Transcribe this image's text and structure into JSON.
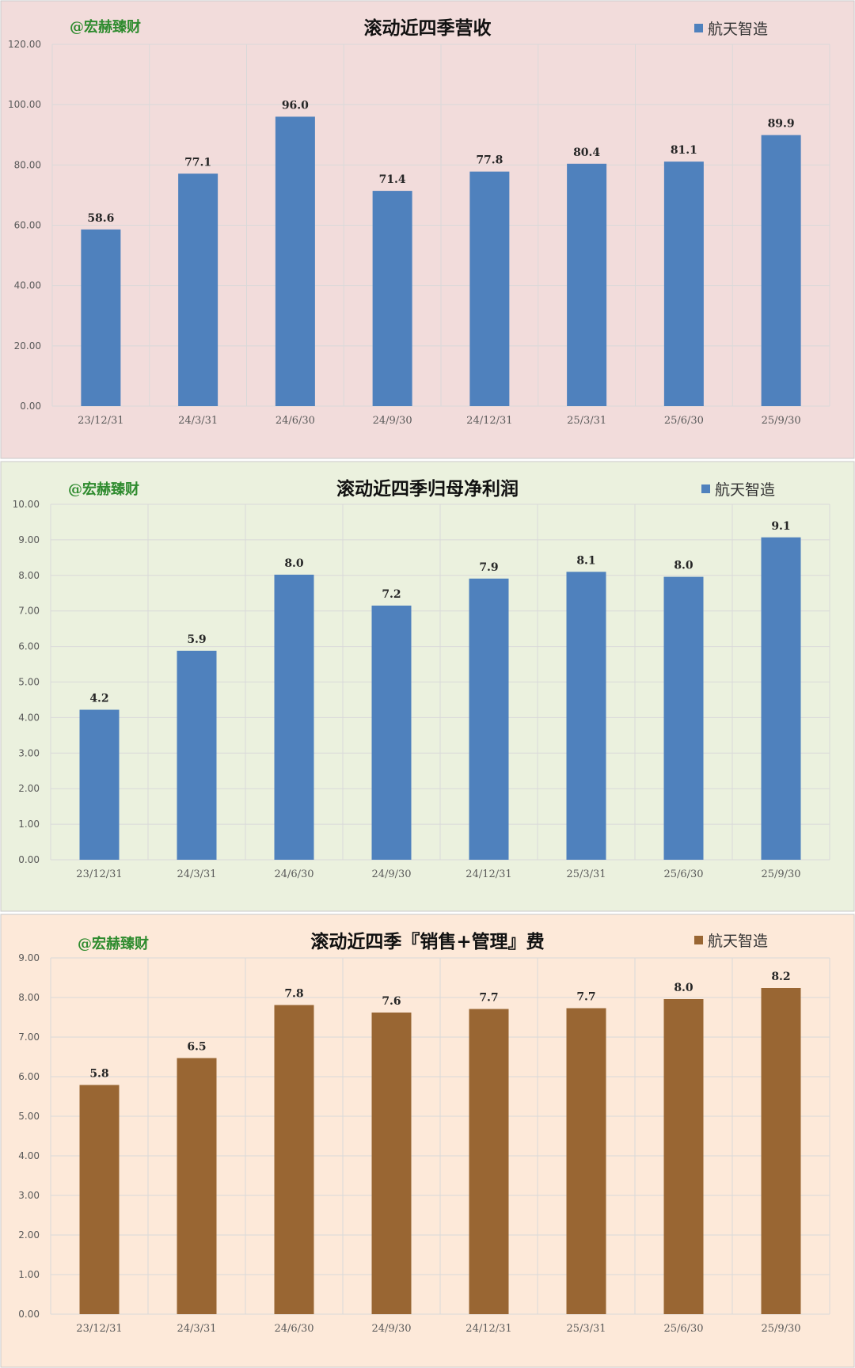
{
  "chart_data": [
    {
      "type": "bar",
      "title": "滚动近四季营收",
      "watermark": "@宏赫臻财",
      "legend": "top-right",
      "categories": [
        "23/12/31",
        "24/3/31",
        "24/6/30",
        "24/9/30",
        "24/12/31",
        "25/3/31",
        "25/6/30",
        "25/9/30"
      ],
      "series": [
        {
          "name": "航天智造",
          "values": [
            58.6,
            77.1,
            96.0,
            71.4,
            77.8,
            80.4,
            81.1,
            89.9
          ],
          "color": "#4f81bd"
        }
      ],
      "ylim": [
        0,
        120
      ],
      "yticks": [
        "0.00",
        "20.00",
        "40.00",
        "60.00",
        "80.00",
        "100.00",
        "120.00"
      ],
      "value_labels": [
        "58.6",
        "77.1",
        "96.0",
        "71.4",
        "77.8",
        "80.4",
        "81.1",
        "89.9"
      ],
      "grid": true,
      "background": "#f2dcdb"
    },
    {
      "type": "bar",
      "title": "滚动近四季归母净利润",
      "watermark": "@宏赫臻财",
      "legend": "top-right",
      "categories": [
        "23/12/31",
        "24/3/31",
        "24/6/30",
        "24/9/30",
        "24/12/31",
        "25/3/31",
        "25/6/30",
        "25/9/30"
      ],
      "series": [
        {
          "name": "航天智造",
          "values": [
            4.22,
            5.88,
            8.02,
            7.15,
            7.91,
            8.1,
            7.96,
            9.07
          ],
          "color": "#4f81bd"
        }
      ],
      "ylim": [
        0,
        10
      ],
      "yticks": [
        "0.00",
        "1.00",
        "2.00",
        "3.00",
        "4.00",
        "5.00",
        "6.00",
        "7.00",
        "8.00",
        "9.00",
        "10.00"
      ],
      "value_labels": [
        "4.2",
        "5.9",
        "8.0",
        "7.2",
        "7.9",
        "8.1",
        "8.0",
        "9.1"
      ],
      "grid": true,
      "background": "#ebf1de"
    },
    {
      "type": "bar",
      "title": "滚动近四季『销售+管理』费",
      "watermark": "@宏赫臻财",
      "legend": "top-right",
      "categories": [
        "23/12/31",
        "24/3/31",
        "24/6/30",
        "24/9/30",
        "24/12/31",
        "25/3/31",
        "25/6/30",
        "25/9/30"
      ],
      "series": [
        {
          "name": "航天智造",
          "values": [
            5.79,
            6.47,
            7.81,
            7.62,
            7.71,
            7.73,
            7.96,
            8.24
          ],
          "color": "#996633"
        }
      ],
      "ylim": [
        0,
        9
      ],
      "yticks": [
        "0.00",
        "1.00",
        "2.00",
        "3.00",
        "4.00",
        "5.00",
        "6.00",
        "7.00",
        "8.00",
        "9.00"
      ],
      "value_labels": [
        "5.8",
        "6.5",
        "7.8",
        "7.6",
        "7.7",
        "7.7",
        "8.0",
        "8.2"
      ],
      "grid": true,
      "background": "#fde9d9"
    }
  ]
}
